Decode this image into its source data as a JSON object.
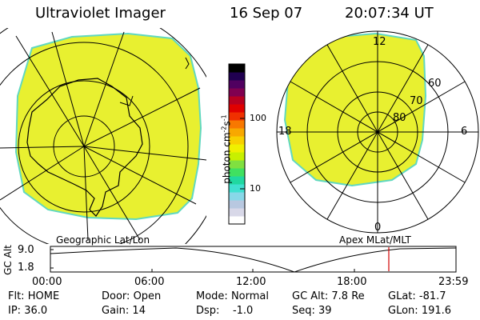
{
  "header": {
    "instrument": "Ultraviolet Imager",
    "date": "16 Sep 07",
    "time": "20:07:34 UT"
  },
  "colorbar": {
    "unit": "photon cm",
    "unit_exp1": "-2",
    "unit_mid": "s",
    "unit_exp2": "-1",
    "tick_100": "100",
    "tick_10": "10",
    "colors": [
      "#ffffff",
      "#d8d8e8",
      "#b8c8e0",
      "#88d8e8",
      "#40e0d0",
      "#20d8a0",
      "#40e060",
      "#80e040",
      "#c8f000",
      "#f0f000",
      "#f8d000",
      "#f8a800",
      "#f87800",
      "#f03000",
      "#e00000",
      "#b80020",
      "#800050",
      "#500060",
      "#200050",
      "#000000"
    ],
    "fill_color": "#e8f030"
  },
  "left_panel": {
    "label": "Geographic Lat/Lon",
    "fill_color": "#e8f030"
  },
  "right_panel": {
    "label": "Apex MLat/MLT",
    "mlt_12": "12",
    "mlt_18": "18",
    "mlt_6": "6",
    "mlt_0": "0",
    "lat_60": "60",
    "lat_70": "70",
    "lat_80": "80"
  },
  "altitude_plot": {
    "ylabel": "GC Alt",
    "y_max": "9.0",
    "y_min": "1.8",
    "x_ticks": [
      "00:00",
      "06:00",
      "12:00",
      "18:00",
      "23:59"
    ],
    "marker_color": "#d00000"
  },
  "status": {
    "flt_label": "Flt:",
    "flt_value": "HOME",
    "door_label": "Door:",
    "door_value": "Open",
    "mode_label": "Mode:",
    "mode_value": "Normal",
    "gcalt_label": "GC Alt:",
    "gcalt_value": "7.8 Re",
    "glat_label": "GLat:",
    "glat_value": "-81.7",
    "ip_label": "IP:",
    "ip_value": "36.0",
    "gain_label": "Gain:",
    "gain_value": "14",
    "dsp_label": "Dsp:",
    "dsp_value": "-1.0",
    "seq_label": "Seq:",
    "seq_value": "39",
    "glon_label": "GLon:",
    "glon_value": "191.6"
  }
}
